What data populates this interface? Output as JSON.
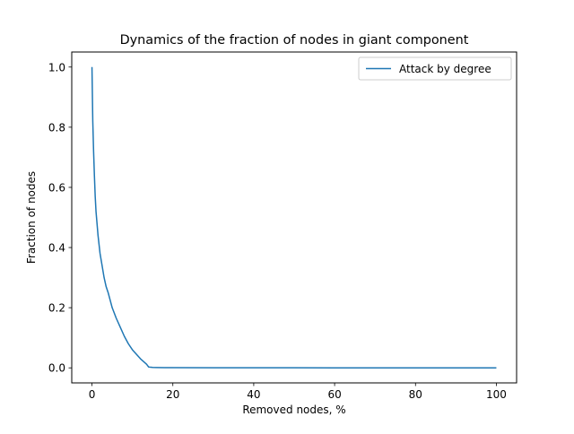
{
  "chart_data": {
    "type": "line",
    "title": "Dynamics of the fraction of nodes in giant component",
    "xlabel": "Removed nodes, %",
    "ylabel": "Fraction of nodes",
    "xlim": [
      -5,
      105
    ],
    "ylim": [
      -0.05,
      1.05
    ],
    "xticks": [
      0,
      20,
      40,
      60,
      80,
      100
    ],
    "yticks": [
      0.0,
      0.2,
      0.4,
      0.6,
      0.8,
      1.0
    ],
    "xtick_labels": [
      "0",
      "20",
      "40",
      "60",
      "80",
      "100"
    ],
    "ytick_labels": [
      "0.0",
      "0.2",
      "0.4",
      "0.6",
      "0.8",
      "1.0"
    ],
    "grid": false,
    "legend": {
      "position": "upper right"
    },
    "series": [
      {
        "name": "Attack by degree",
        "color": "#1f77b4",
        "x": [
          0,
          0.2,
          0.4,
          0.6,
          0.8,
          1.0,
          1.5,
          2.0,
          2.5,
          3.0,
          3.5,
          4.0,
          5.0,
          6.0,
          7.0,
          8.0,
          9.0,
          10.0,
          11.0,
          12.0,
          13.0,
          13.5,
          14.0,
          14.5,
          15.0,
          16.0,
          18.0,
          20.0,
          30.0,
          40.0,
          50.0,
          60.0,
          70.0,
          80.0,
          90.0,
          100.0
        ],
        "y": [
          1.0,
          0.82,
          0.72,
          0.64,
          0.57,
          0.52,
          0.44,
          0.38,
          0.34,
          0.3,
          0.27,
          0.25,
          0.2,
          0.165,
          0.135,
          0.105,
          0.08,
          0.06,
          0.045,
          0.03,
          0.018,
          0.012,
          0.003,
          0.002,
          0.0015,
          0.0012,
          0.0008,
          0.0005,
          0.0003,
          0.0002,
          0.0002,
          0.0001,
          0.0001,
          0.0001,
          0.0001,
          0.0
        ]
      }
    ]
  }
}
